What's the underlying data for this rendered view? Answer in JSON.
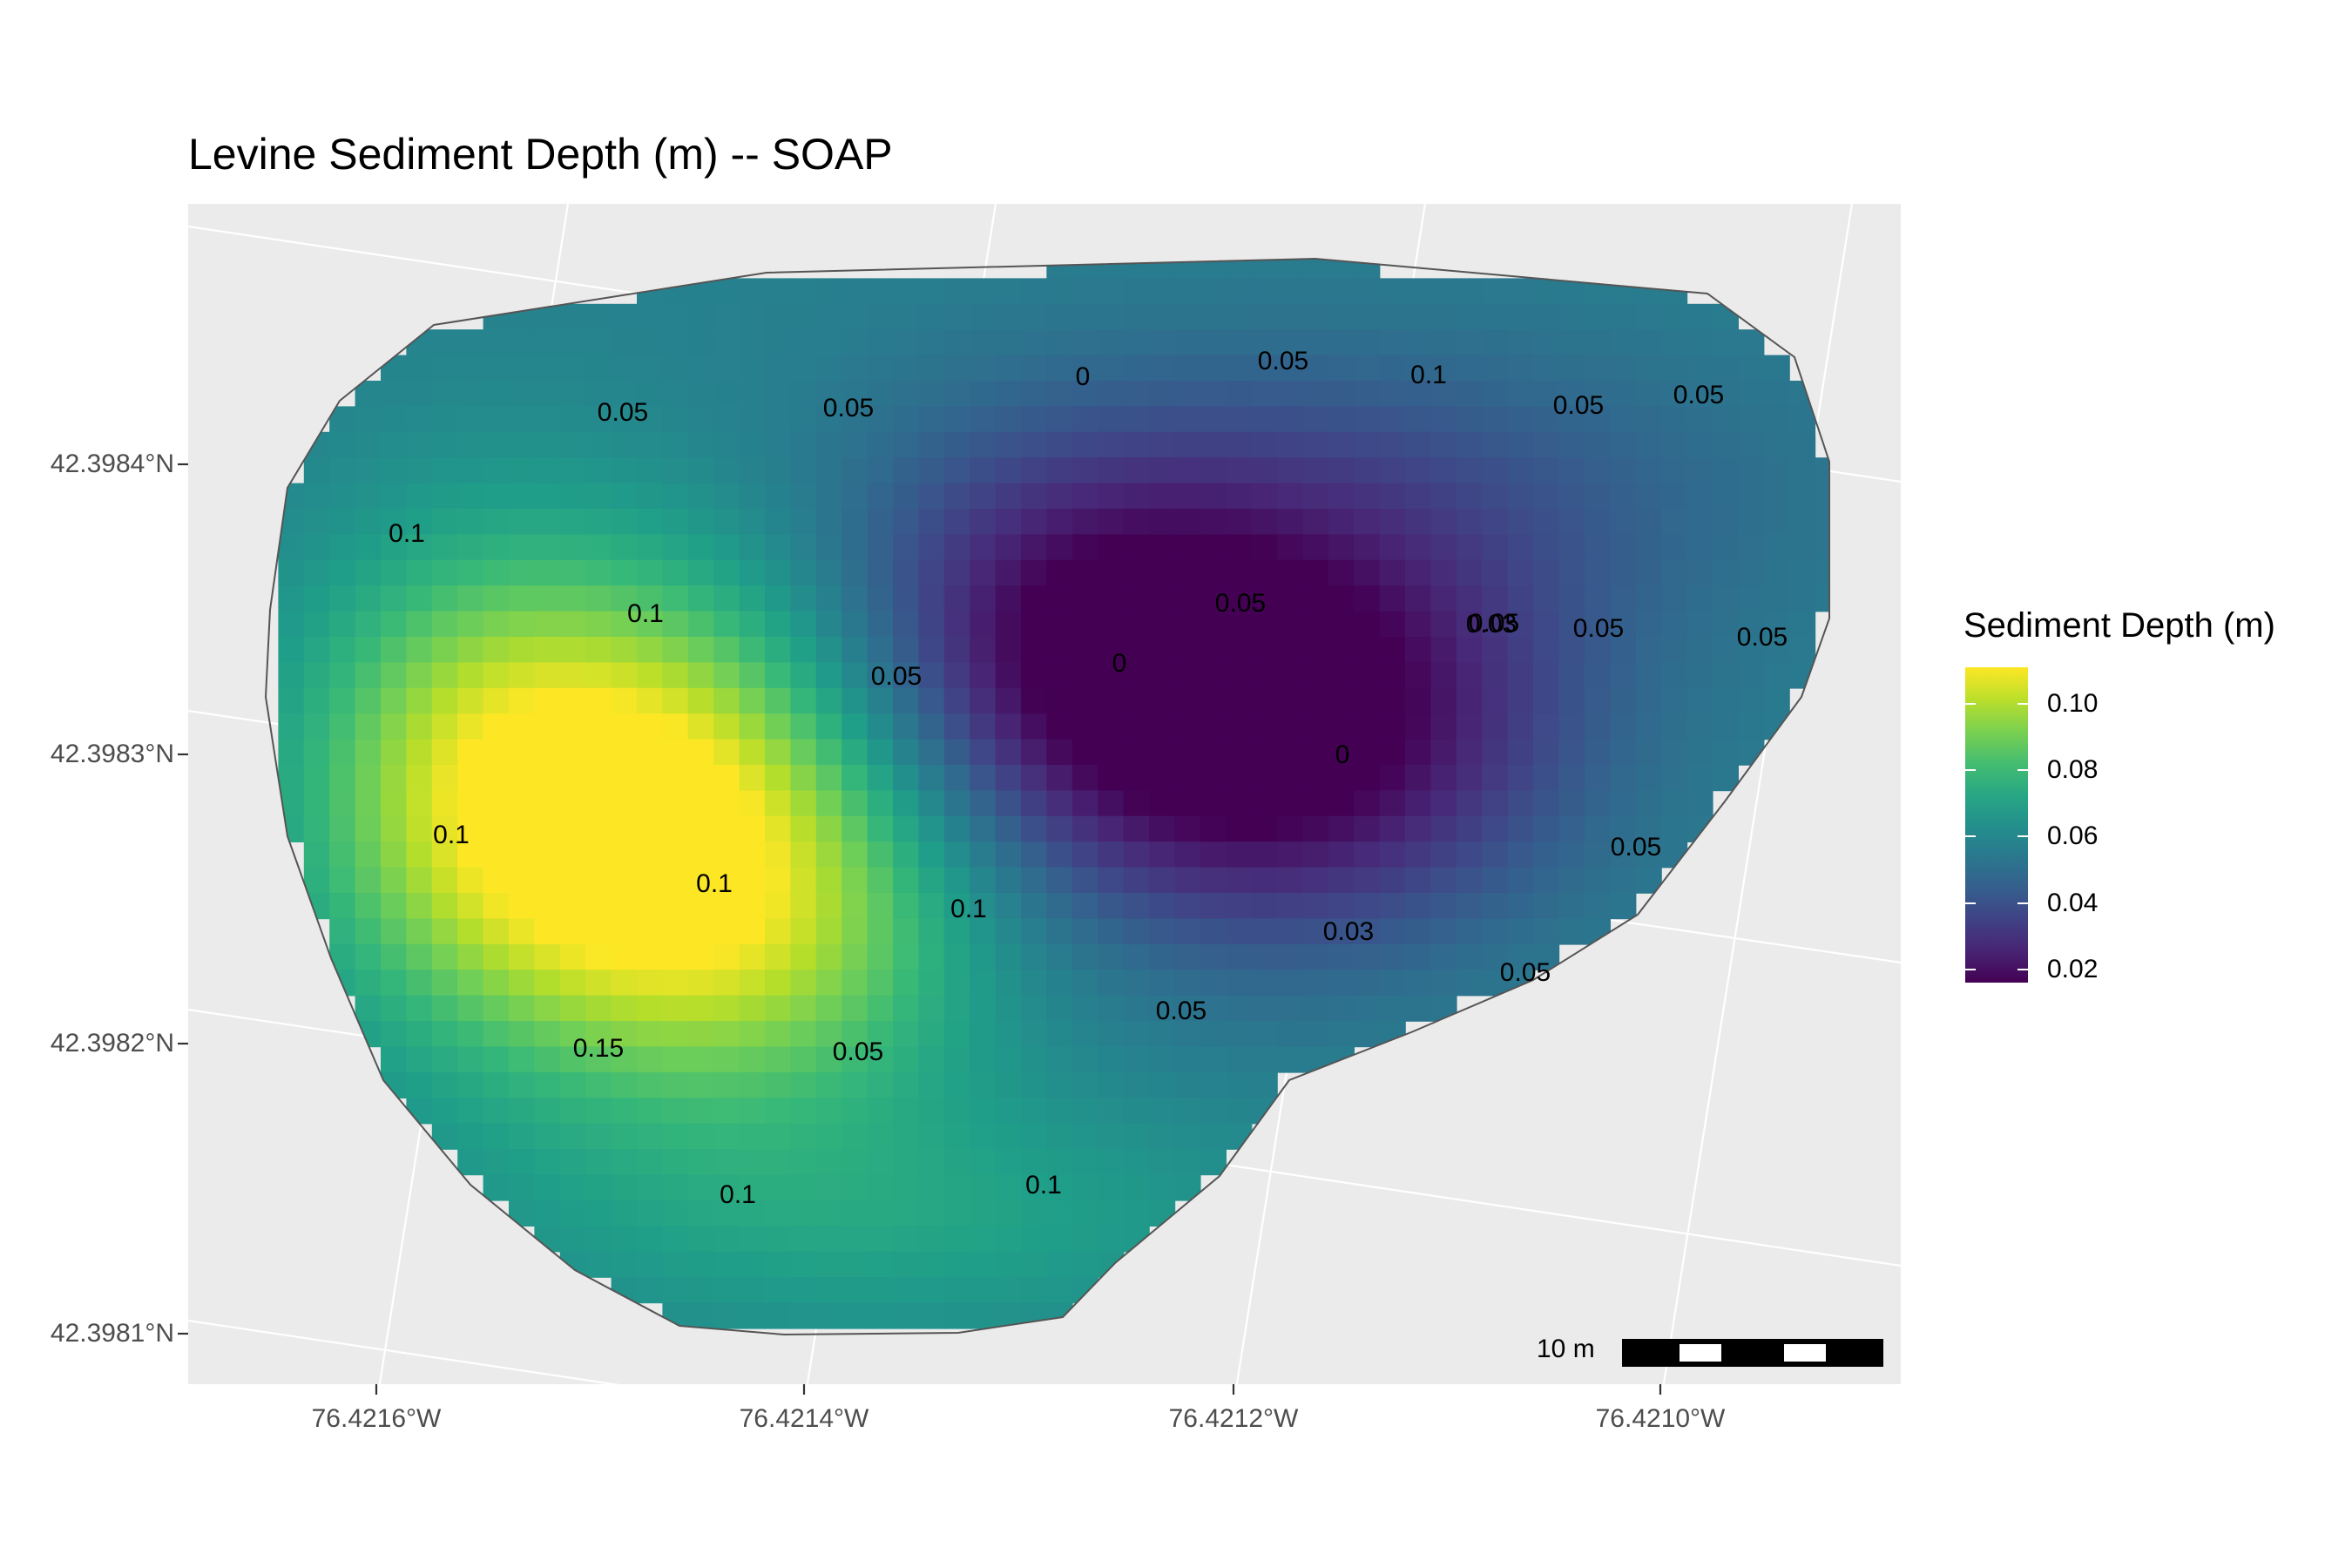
{
  "title": "Levine Sediment Depth (m) -- SOAP",
  "axes": {
    "x_ticks": [
      "76.4216°W",
      "76.4214°W",
      "76.4212°W",
      "76.4210°W"
    ],
    "y_ticks": [
      "42.3984°N",
      "42.3983°N",
      "42.3982°N",
      "42.3981°N"
    ]
  },
  "legend": {
    "title": "Sediment Depth (m)",
    "labels": [
      "0.10",
      "0.08",
      "0.06",
      "0.04",
      "0.02"
    ],
    "values": [
      0.1,
      0.08,
      0.06,
      0.04,
      0.02
    ],
    "range": [
      0.016,
      0.111
    ],
    "colormap": [
      "#440154",
      "#3b528b",
      "#21918c",
      "#5ec962",
      "#fde725"
    ]
  },
  "scale_bar": {
    "label": "10 m"
  },
  "sample_labels": [
    "0",
    "0.05",
    "0.1",
    "0.05",
    "0.05",
    "0.05",
    "0.05",
    "0.1",
    "0.05",
    "0.1",
    "0.05",
    "0",
    "0.03",
    "0.05",
    "0.05",
    "0.05",
    "0",
    "0.1",
    "0.1",
    "0.1",
    "0.05",
    "0.03",
    "0.05",
    "0.05",
    "0.15",
    "0.05",
    "0.1",
    "0.1"
  ],
  "colors": {
    "panel": "#ebebeb",
    "grid": "#ffffff",
    "outline": "#555555"
  }
}
